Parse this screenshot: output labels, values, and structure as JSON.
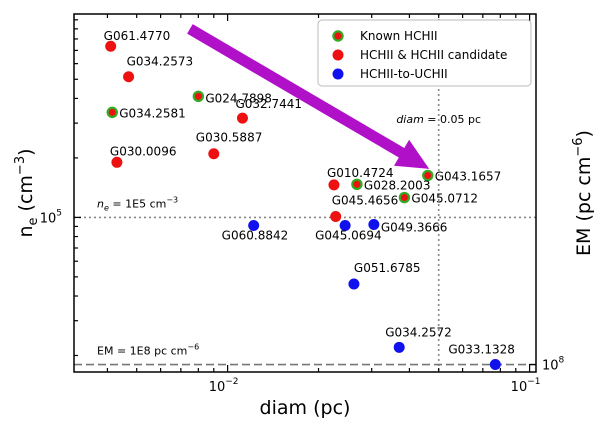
{
  "chart_data": {
    "type": "scatter",
    "xlabel_main": "diam",
    "xlabel_unit": "(pc)",
    "ylabel_main": "n",
    "ylabel_sub": "e",
    "ylabel_unit_pre": "(cm",
    "ylabel_unit_sup": "−3",
    "ylabel_unit_post": ")",
    "ylabel2_main": "EM (pc cm",
    "ylabel2_sup": "−6",
    "ylabel2_post": ")",
    "x_scale": "log",
    "y_scale": "log",
    "xlim": [
      0.0031,
      0.105
    ],
    "ylim": [
      16500,
      1070000
    ],
    "x_ticks": [
      {
        "value": 0.01,
        "base": "10",
        "exp": "−2"
      },
      {
        "value": 0.1,
        "base": "10",
        "exp": "−1"
      }
    ],
    "y_ticks": [
      {
        "value": 100000,
        "base": "10",
        "exp": "5"
      }
    ],
    "y2_ticks": [
      {
        "y_at": 18000,
        "base": "10",
        "exp": "8"
      }
    ],
    "legend_position": "top-right",
    "series": [
      {
        "name": "Known HCHII",
        "marker": "circle",
        "color": "#ee1111",
        "edgecolor": "#33aa22",
        "points": [
          {
            "label": "G024.7898",
            "x": 0.008,
            "y": 410000
          },
          {
            "label": "G034.2581",
            "x": 0.00415,
            "y": 340000
          },
          {
            "label": "G028.2003",
            "x": 0.0268,
            "y": 147000
          },
          {
            "label": "G043.1657",
            "x": 0.046,
            "y": 163000
          },
          {
            "label": "G045.0712",
            "x": 0.0385,
            "y": 126000
          }
        ]
      },
      {
        "name": "HCHII & HCHII candidate",
        "marker": "circle",
        "color": "#ee1111",
        "edgecolor": "#ee1111",
        "points": [
          {
            "label": "G061.4770",
            "x": 0.0041,
            "y": 735000
          },
          {
            "label": "G034.2573",
            "x": 0.0047,
            "y": 515000
          },
          {
            "label": "G032.7441",
            "x": 0.0112,
            "y": 318000
          },
          {
            "label": "G030.5887",
            "x": 0.009,
            "y": 210000
          },
          {
            "label": "G030.0096",
            "x": 0.0043,
            "y": 190000
          },
          {
            "label": "G010.4724",
            "x": 0.0225,
            "y": 146000
          },
          {
            "label": "G045.4656",
            "x": 0.0228,
            "y": 101000
          }
        ]
      },
      {
        "name": "HCHII-to-UCHII",
        "marker": "circle",
        "color": "#1111ee",
        "edgecolor": "#1111ee",
        "points": [
          {
            "label": "G060.8842",
            "x": 0.0122,
            "y": 91000
          },
          {
            "label": "G045.0694",
            "x": 0.0245,
            "y": 91000
          },
          {
            "label": "G049.3666",
            "x": 0.0305,
            "y": 92000
          },
          {
            "label": "G051.6785",
            "x": 0.0262,
            "y": 46000
          },
          {
            "label": "G034.2572",
            "x": 0.037,
            "y": 22000
          },
          {
            "label": "G033.1328",
            "x": 0.077,
            "y": 18000
          }
        ]
      }
    ],
    "reference_lines": [
      {
        "orientation": "vertical",
        "x": 0.05,
        "style": "dotted",
        "label_italic": "diam",
        "label_rest": " = 0.05 pc"
      },
      {
        "orientation": "horizontal",
        "y": 100000,
        "style": "dotted",
        "label_italic": "n",
        "label_sub": "e",
        "label_rest": " = 1E5 cm",
        "label_sup": "−3"
      },
      {
        "orientation": "horizontal",
        "y": 18000,
        "style": "dashed",
        "label_rest": "EM = 1E8 pc cm",
        "label_sup": "−6"
      }
    ],
    "arrow": {
      "color": "#b010c8",
      "from": {
        "x": 0.0075,
        "y": 900000
      },
      "to": {
        "x": 0.0465,
        "y": 176000
      }
    }
  }
}
